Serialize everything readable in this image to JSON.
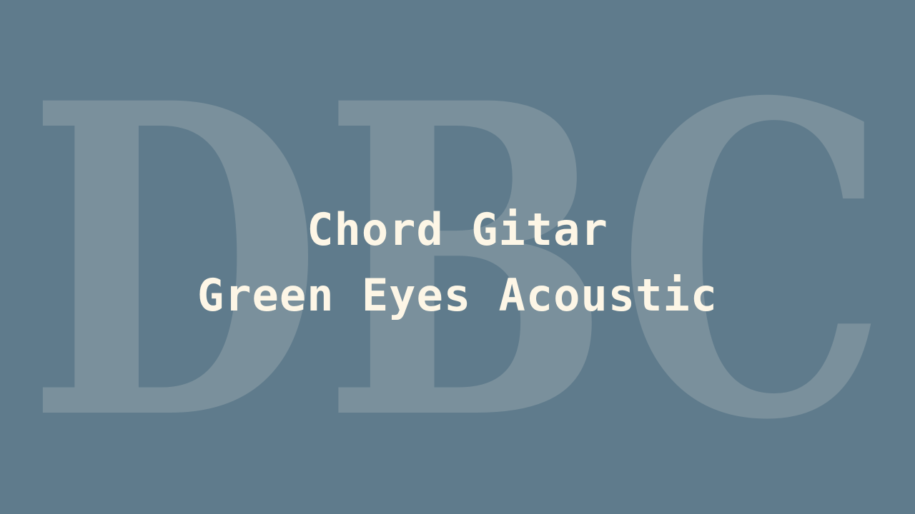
{
  "background": {
    "color": "#5f7b8c",
    "watermark_text": "DBC",
    "watermark_color": "#7a909c"
  },
  "title": {
    "line1": "Chord Gitar",
    "line2": "Green Eyes Acoustic",
    "color": "#fdf6e6"
  }
}
